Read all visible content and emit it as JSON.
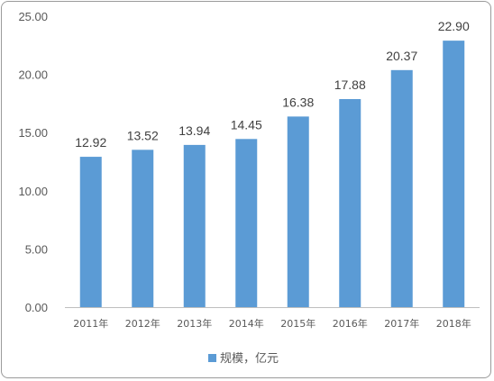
{
  "chart_data": {
    "type": "bar",
    "categories": [
      "2011年",
      "2012年",
      "2013年",
      "2014年",
      "2015年",
      "2016年",
      "2017年",
      "2018年"
    ],
    "series": [
      {
        "name": "规模，亿元",
        "values": [
          12.92,
          13.52,
          13.94,
          14.45,
          16.38,
          17.88,
          20.37,
          22.9
        ],
        "labels": [
          "12.92",
          "13.52",
          "13.94",
          "14.45",
          "16.38",
          "17.88",
          "20.37",
          "22.90"
        ]
      }
    ],
    "ylim": [
      0,
      25
    ],
    "yticks": [
      "0.00",
      "5.00",
      "10.00",
      "15.00",
      "20.00",
      "25.00"
    ],
    "ytick_values": [
      0,
      5,
      10,
      15,
      20,
      25
    ],
    "grid": false,
    "legend_position": "bottom",
    "bar_color": "#5b9bd5",
    "axis_color": "#bfbfbf"
  }
}
